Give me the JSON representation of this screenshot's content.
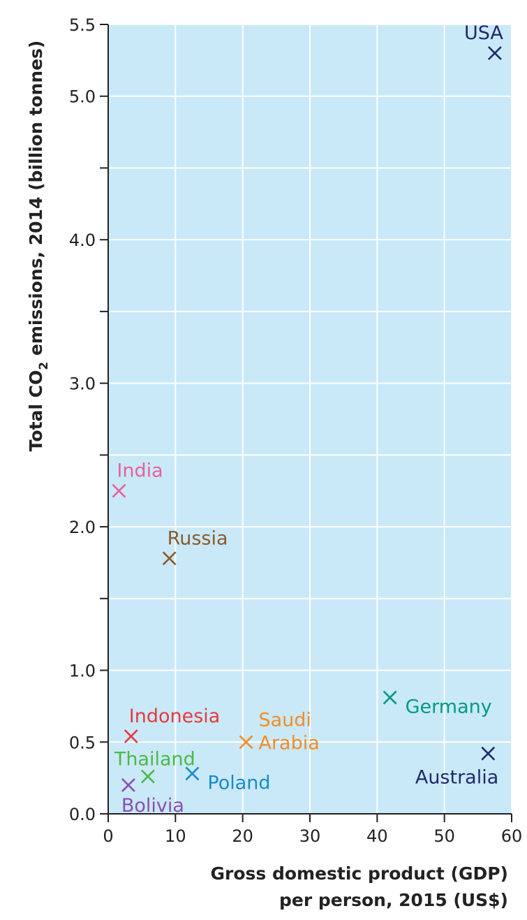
{
  "chart_data": {
    "type": "scatter",
    "title": "",
    "xlabel_lines": [
      "Gross domestic product (GDP)",
      "per person, 2015 (US$)"
    ],
    "ylabel": {
      "prefix": "Total CO",
      "subscript": "2",
      "suffix": " emissions, 2014 (billion tonnes)"
    },
    "xlim": [
      0,
      60
    ],
    "ylim": [
      0,
      5.5
    ],
    "x_ticks": [
      0,
      10,
      20,
      30,
      40,
      50,
      60
    ],
    "x_tick_labels": [
      "0",
      "10",
      "20",
      "30",
      "40",
      "50",
      "60"
    ],
    "x_grid": [
      10,
      20,
      30,
      40,
      50,
      60
    ],
    "y_ticks": [
      0,
      0.5,
      1.0,
      1.5,
      2.0,
      2.5,
      3.0,
      3.5,
      4.0,
      4.5,
      5.0,
      5.5
    ],
    "y_tick_labels": [
      {
        "value": 0,
        "label": "0.0"
      },
      {
        "value": 0.5,
        "label": "0.5"
      },
      {
        "value": 1.0,
        "label": "1.0"
      },
      {
        "value": 2.0,
        "label": "2.0"
      },
      {
        "value": 3.0,
        "label": "3.0"
      },
      {
        "value": 4.0,
        "label": "4.0"
      },
      {
        "value": 5.0,
        "label": "5.0"
      },
      {
        "value": 5.5,
        "label": "5.5"
      }
    ],
    "grid": true,
    "plot_background": "#c9e9f8",
    "grid_color": "#ffffff",
    "marker": "x",
    "points": [
      {
        "lines": [
          "USA"
        ],
        "x": 57.5,
        "y": 5.3,
        "color": "#1f2a6b",
        "label_pos": "above-left"
      },
      {
        "lines": [
          "India"
        ],
        "x": 1.6,
        "y": 2.25,
        "color": "#e8619e",
        "label_pos": "above-right"
      },
      {
        "lines": [
          "Russia"
        ],
        "x": 9.1,
        "y": 1.78,
        "color": "#8b5a2b",
        "label_pos": "above-right"
      },
      {
        "lines": [
          "Germany"
        ],
        "x": 41.9,
        "y": 0.81,
        "color": "#009b7d",
        "label_pos": "right-below"
      },
      {
        "lines": [
          "Indonesia"
        ],
        "x": 3.4,
        "y": 0.54,
        "color": "#e63a3e",
        "label_pos": "above-right"
      },
      {
        "lines": [
          "Saudi",
          "Arabia"
        ],
        "x": 20.5,
        "y": 0.5,
        "color": "#f28c28",
        "label_pos": "right-stack"
      },
      {
        "lines": [
          "Australia"
        ],
        "x": 56.5,
        "y": 0.42,
        "color": "#1f2a6b",
        "label_pos": "below-left"
      },
      {
        "lines": [
          "Thailand"
        ],
        "x": 5.9,
        "y": 0.26,
        "color": "#4cb848",
        "label_pos": "above"
      },
      {
        "lines": [
          "Poland"
        ],
        "x": 12.5,
        "y": 0.28,
        "color": "#1a8ac9",
        "label_pos": "right-below"
      },
      {
        "lines": [
          "Bolivia"
        ],
        "x": 3.0,
        "y": 0.2,
        "color": "#8b4fb0",
        "label_pos": "below-right"
      }
    ]
  }
}
